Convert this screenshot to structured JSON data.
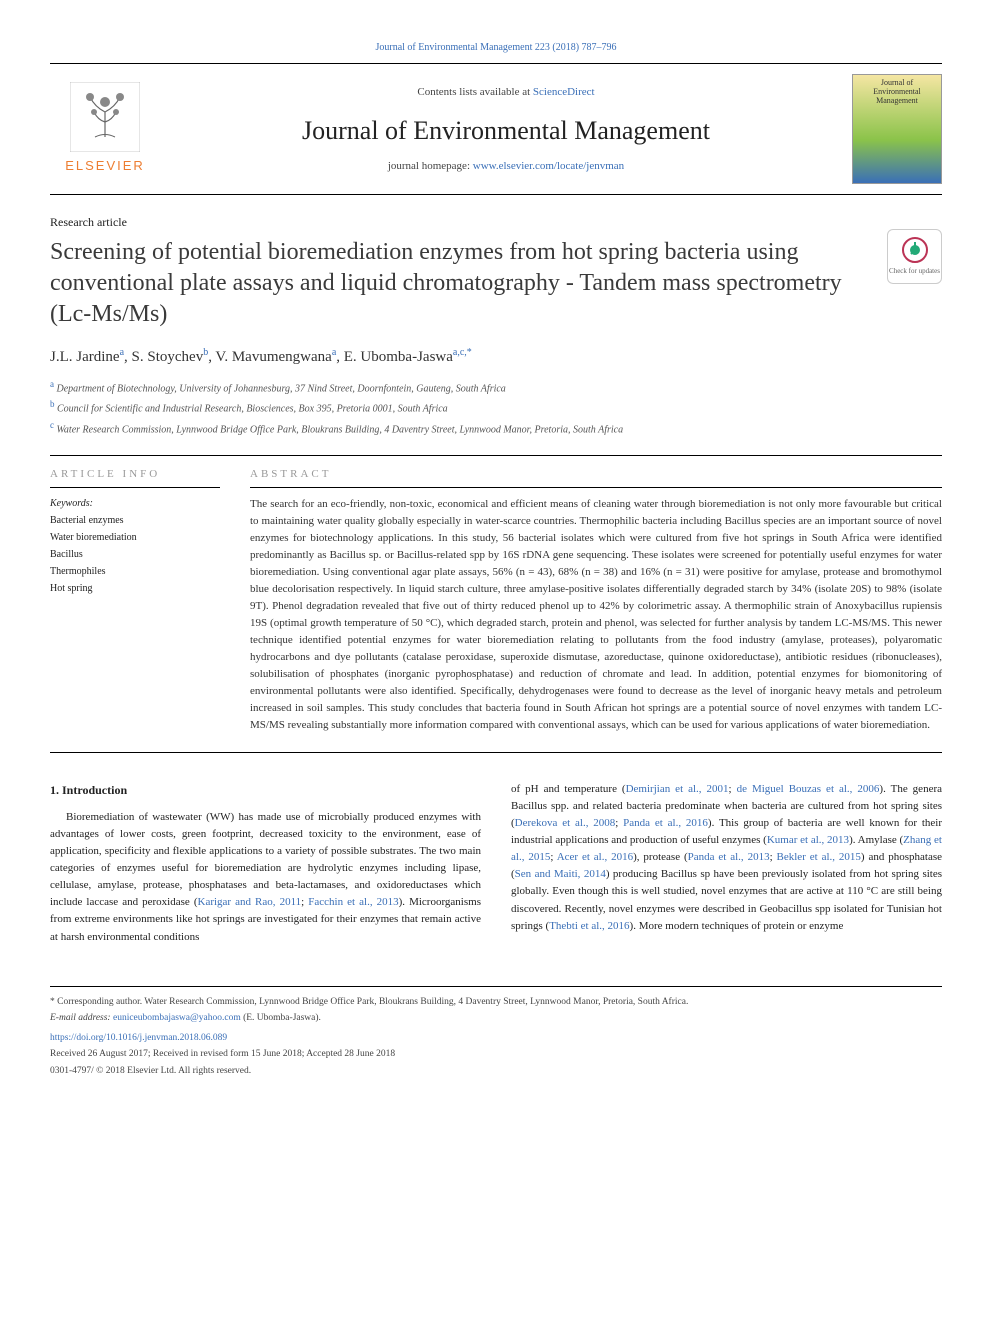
{
  "top_citation": "Journal of Environmental Management 223 (2018) 787–796",
  "header": {
    "contents_prefix": "Contents lists available at ",
    "contents_link": "ScienceDirect",
    "journal_name": "Journal of Environmental Management",
    "homepage_prefix": "journal homepage: ",
    "homepage_url": "www.elsevier.com/locate/jenvman",
    "publisher": "ELSEVIER",
    "cover_text": "Journal of Environmental Management"
  },
  "article_type": "Research article",
  "title": "Screening of potential bioremediation enzymes from hot spring bacteria using conventional plate assays and liquid chromatography - Tandem mass spectrometry (Lc-Ms/Ms)",
  "check_updates": "Check for updates",
  "authors_html": "J.L. Jardine<sup>a</sup>, S. Stoychev<sup>b</sup>, V. Mavumengwana<sup>a</sup>, E. Ubomba-Jaswa<sup>a,c,*</sup>",
  "affiliations": [
    {
      "sup": "a",
      "text": "Department of Biotechnology, University of Johannesburg, 37 Nind Street, Doornfontein, Gauteng, South Africa"
    },
    {
      "sup": "b",
      "text": "Council for Scientific and Industrial Research, Biosciences, Box 395, Pretoria 0001, South Africa"
    },
    {
      "sup": "c",
      "text": "Water Research Commission, Lynnwood Bridge Office Park, Bloukrans Building, 4 Daventry Street, Lynnwood Manor, Pretoria, South Africa"
    }
  ],
  "article_info_heading": "ARTICLE INFO",
  "abstract_heading": "ABSTRACT",
  "keywords_label": "Keywords:",
  "keywords": [
    "Bacterial enzymes",
    "Water bioremediation",
    "Bacillus",
    "Thermophiles",
    "Hot spring"
  ],
  "abstract": "The search for an eco-friendly, non-toxic, economical and efficient means of cleaning water through bioremediation is not only more favourable but critical to maintaining water quality globally especially in water-scarce countries. Thermophilic bacteria including Bacillus species are an important source of novel enzymes for biotechnology applications. In this study, 56 bacterial isolates which were cultured from five hot springs in South Africa were identified predominantly as Bacillus sp. or Bacillus-related spp by 16S rDNA gene sequencing. These isolates were screened for potentially useful enzymes for water bioremediation. Using conventional agar plate assays, 56% (n = 43), 68% (n = 38) and 16% (n = 31) were positive for amylase, protease and bromothymol blue decolorisation respectively. In liquid starch culture, three amylase-positive isolates differentially degraded starch by 34% (isolate 20S) to 98% (isolate 9T). Phenol degradation revealed that five out of thirty reduced phenol up to 42% by colorimetric assay. A thermophilic strain of Anoxybacillus rupiensis 19S (optimal growth temperature of 50 °C), which degraded starch, protein and phenol, was selected for further analysis by tandem LC-MS/MS. This newer technique identified potential enzymes for water bioremediation relating to pollutants from the food industry (amylase, proteases), polyaromatic hydrocarbons and dye pollutants (catalase peroxidase, superoxide dismutase, azoreductase, quinone oxidoreductase), antibiotic residues (ribonucleases), solubilisation of phosphates (inorganic pyrophosphatase) and reduction of chromate and lead. In addition, potential enzymes for biomonitoring of environmental pollutants were also identified. Specifically, dehydrogenases were found to decrease as the level of inorganic heavy metals and petroleum increased in soil samples. This study concludes that bacteria found in South African hot springs are a potential source of novel enzymes with tandem LC-MS/MS revealing substantially more information compared with conventional assays, which can be used for various applications of water bioremediation.",
  "intro_heading": "1. Introduction",
  "intro_col1": "Bioremediation of wastewater (WW) has made use of microbially produced enzymes with advantages of lower costs, green footprint, decreased toxicity to the environment, ease of application, specificity and flexible applications to a variety of possible substrates. The two main categories of enzymes useful for bioremediation are hydrolytic enzymes including lipase, cellulase, amylase, protease, phosphatases and beta-lactamases, and oxidoreductases which include laccase and peroxidase (",
  "intro_col1_ref1": "Karigar and Rao, 2011",
  "intro_col1_mid": "; ",
  "intro_col1_ref2": "Facchin et al., 2013",
  "intro_col1_end": "). Microorganisms from extreme environments like hot springs are investigated for their enzymes that remain active at harsh environmental conditions",
  "intro_col2_start": "of pH and temperature (",
  "intro_col2_ref1": "Demirjian et al., 2001",
  "intro_col2_s1": "; ",
  "intro_col2_ref2": "de Miguel Bouzas et al., 2006",
  "intro_col2_s2": "). The genera Bacillus spp. and related bacteria predominate when bacteria are cultured from hot spring sites (",
  "intro_col2_ref3": "Derekova et al., 2008",
  "intro_col2_s3": "; ",
  "intro_col2_ref4": "Panda et al., 2016",
  "intro_col2_s4": "). This group of bacteria are well known for their industrial applications and production of useful enzymes (",
  "intro_col2_ref5": "Kumar et al., 2013",
  "intro_col2_s5": "). Amylase (",
  "intro_col2_ref6": "Zhang et al., 2015",
  "intro_col2_s6": "; ",
  "intro_col2_ref7": "Acer et al., 2016",
  "intro_col2_s7": "), protease (",
  "intro_col2_ref8": "Panda et al., 2013",
  "intro_col2_s8": "; ",
  "intro_col2_ref9": "Bekler et al., 2015",
  "intro_col2_s9": ") and phosphatase (",
  "intro_col2_ref10": "Sen and Maiti, 2014",
  "intro_col2_s10": ") producing Bacillus sp have been previously isolated from hot spring sites globally. Even though this is well studied, novel enzymes that are active at 110 °C are still being discovered. Recently, novel enzymes were described in Geobacillus spp isolated for Tunisian hot springs (",
  "intro_col2_ref11": "Thebti et al., 2016",
  "intro_col2_s11": "). More modern techniques of protein or enzyme",
  "footer": {
    "corresponding": "* Corresponding author. Water Research Commission, Lynnwood Bridge Office Park, Bloukrans Building, 4 Daventry Street, Lynnwood Manor, Pretoria, South Africa.",
    "email_label": "E-mail address: ",
    "email": "euniceubombajaswa@yahoo.com",
    "email_suffix": " (E. Ubomba-Jaswa).",
    "doi": "https://doi.org/10.1016/j.jenvman.2018.06.089",
    "received": "Received 26 August 2017; Received in revised form 15 June 2018; Accepted 28 June 2018",
    "copyright": "0301-4797/ © 2018 Elsevier Ltd. All rights reserved."
  },
  "colors": {
    "link": "#3a6fb7",
    "publisher": "#ed7d31",
    "text": "#222",
    "muted": "#555"
  }
}
